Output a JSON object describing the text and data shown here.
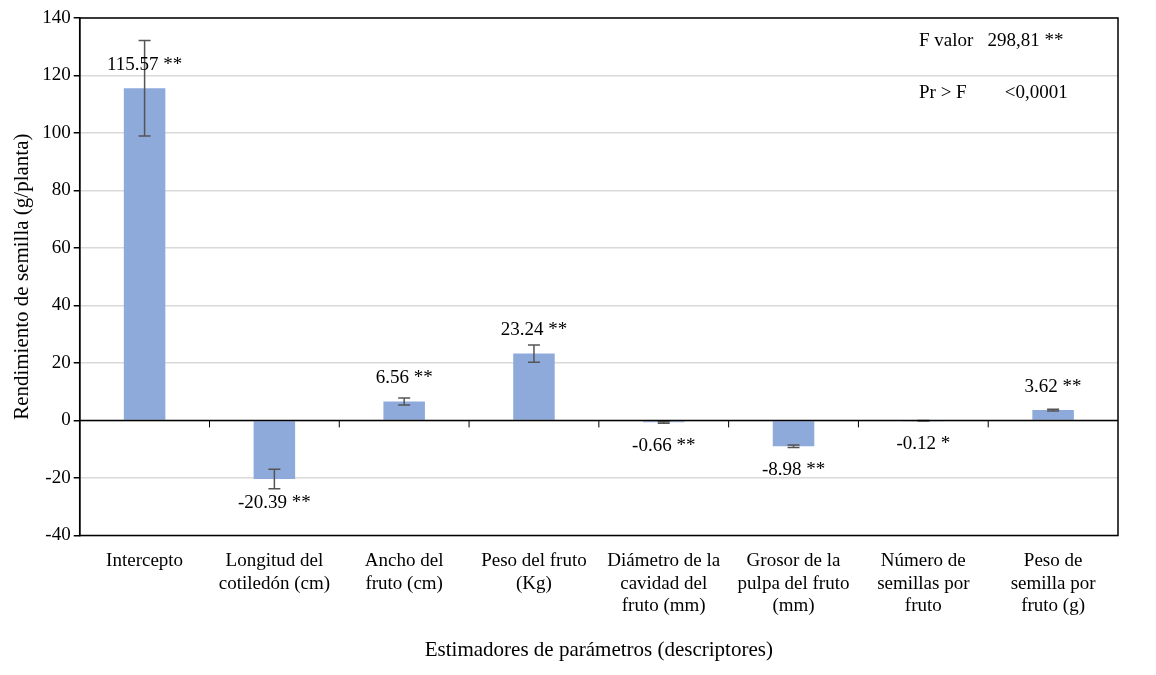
{
  "chart_data": {
    "type": "bar",
    "xlabel": "Estimadores de parámetros (descriptores)",
    "ylabel": "Rendimiento de semilla (g/planta)",
    "categories": [
      "Intercepto",
      "Longitud del cotiledón (cm)",
      "Ancho del fruto (cm)",
      "Peso del fruto (Kg)",
      "Diámetro de la cavidad del fruto (mm)",
      "Grosor de la pulpa del fruto (mm)",
      "Número de semillas por fruto",
      "Peso de semilla por fruto (g)"
    ],
    "values": [
      115.57,
      -20.39,
      6.56,
      23.24,
      -0.66,
      -8.98,
      -0.12,
      3.62
    ],
    "errors": [
      16.6,
      3.4,
      1.2,
      3,
      0.3,
      0.4,
      0.1,
      0.3
    ],
    "value_labels": [
      "115.57 **",
      "-20.39 **",
      "6.56 **",
      "23.24 **",
      "-0.66 **",
      "-8.98 **",
      "-0.12 *",
      "3.62 **"
    ],
    "color": "#8eaadb",
    "ylim": [
      -40,
      140
    ],
    "yticks": [
      -40,
      -20,
      0,
      20,
      40,
      60,
      80,
      100,
      120,
      140
    ],
    "grid": "y",
    "legend": false,
    "annotations": [
      "F valor   298,81 **",
      "Pr > F        <0,0001"
    ]
  }
}
